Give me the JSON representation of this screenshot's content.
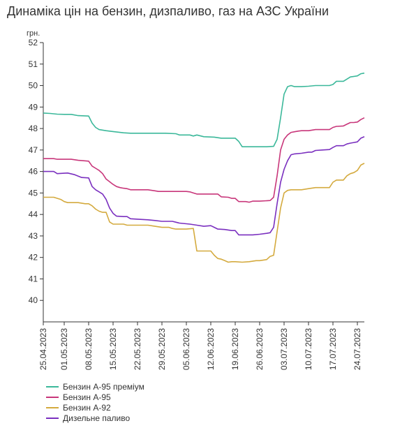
{
  "chart_data": {
    "type": "line",
    "title": "Динаміка цін на бензин, дизпаливо, газ на АЗС України",
    "y_unit": "грн.",
    "ylim": [
      39,
      52
    ],
    "y_ticks": [
      40,
      41,
      42,
      43,
      44,
      45,
      46,
      47,
      48,
      49,
      50,
      51,
      52
    ],
    "x_ticks": [
      "25.04.2023",
      "01.05.2023",
      "08.05.2023",
      "15.05.2023",
      "22.05.2023",
      "29.05.2023",
      "05.06.2023",
      "12.06.2023",
      "19.06.2023",
      "26.06.2023",
      "03.07.2023",
      "10.07.2023",
      "17.07.2023",
      "24.07.2023"
    ],
    "x_start": "2023-04-25",
    "x_end": "2023-07-26",
    "grid": false,
    "legend_position": "bottom-left",
    "series": [
      {
        "name": "Бензин А-95 преміум",
        "color": "#3bb89a",
        "points": [
          [
            "2023-04-25",
            48.72
          ],
          [
            "2023-04-27",
            48.7
          ],
          [
            "2023-04-29",
            48.67
          ],
          [
            "2023-05-01",
            48.66
          ],
          [
            "2023-05-03",
            48.66
          ],
          [
            "2023-05-05",
            48.6
          ],
          [
            "2023-05-08",
            48.58
          ],
          [
            "2023-05-09",
            48.25
          ],
          [
            "2023-05-10",
            48.05
          ],
          [
            "2023-05-11",
            47.95
          ],
          [
            "2023-05-13",
            47.9
          ],
          [
            "2023-05-15",
            47.86
          ],
          [
            "2023-05-18",
            47.8
          ],
          [
            "2023-05-20",
            47.78
          ],
          [
            "2023-05-25",
            47.78
          ],
          [
            "2023-05-30",
            47.78
          ],
          [
            "2023-06-02",
            47.76
          ],
          [
            "2023-06-03",
            47.7
          ],
          [
            "2023-06-06",
            47.7
          ],
          [
            "2023-06-07",
            47.65
          ],
          [
            "2023-06-08",
            47.7
          ],
          [
            "2023-06-10",
            47.62
          ],
          [
            "2023-06-13",
            47.6
          ],
          [
            "2023-06-15",
            47.55
          ],
          [
            "2023-06-19",
            47.55
          ],
          [
            "2023-06-20",
            47.4
          ],
          [
            "2023-06-21",
            47.15
          ],
          [
            "2023-06-23",
            47.15
          ],
          [
            "2023-06-26",
            47.15
          ],
          [
            "2023-06-28",
            47.15
          ],
          [
            "2023-06-30",
            47.17
          ],
          [
            "2023-07-01",
            47.5
          ],
          [
            "2023-07-02",
            48.5
          ],
          [
            "2023-07-03",
            49.6
          ],
          [
            "2023-07-04",
            49.95
          ],
          [
            "2023-07-05",
            50.0
          ],
          [
            "2023-07-06",
            49.95
          ],
          [
            "2023-07-08",
            49.95
          ],
          [
            "2023-07-10",
            49.97
          ],
          [
            "2023-07-12",
            50.0
          ],
          [
            "2023-07-14",
            50.0
          ],
          [
            "2023-07-16",
            50.0
          ],
          [
            "2023-07-17",
            50.05
          ],
          [
            "2023-07-18",
            50.2
          ],
          [
            "2023-07-19",
            50.2
          ],
          [
            "2023-07-20",
            50.2
          ],
          [
            "2023-07-21",
            50.3
          ],
          [
            "2023-07-22",
            50.4
          ],
          [
            "2023-07-24",
            50.45
          ],
          [
            "2023-07-25",
            50.55
          ],
          [
            "2023-07-26",
            50.58
          ]
        ]
      },
      {
        "name": "Бензин А-95",
        "color": "#c8367a",
        "points": [
          [
            "2023-04-25",
            46.6
          ],
          [
            "2023-04-28",
            46.6
          ],
          [
            "2023-04-29",
            46.57
          ],
          [
            "2023-05-03",
            46.57
          ],
          [
            "2023-05-05",
            46.52
          ],
          [
            "2023-05-08",
            46.48
          ],
          [
            "2023-05-09",
            46.25
          ],
          [
            "2023-05-10",
            46.15
          ],
          [
            "2023-05-11",
            46.05
          ],
          [
            "2023-05-12",
            45.9
          ],
          [
            "2023-05-13",
            45.65
          ],
          [
            "2023-05-15",
            45.4
          ],
          [
            "2023-05-16",
            45.3
          ],
          [
            "2023-05-17",
            45.25
          ],
          [
            "2023-05-18",
            45.22
          ],
          [
            "2023-05-19",
            45.2
          ],
          [
            "2023-05-20",
            45.15
          ],
          [
            "2023-05-25",
            45.15
          ],
          [
            "2023-05-27",
            45.1
          ],
          [
            "2023-05-28",
            45.07
          ],
          [
            "2023-06-05",
            45.07
          ],
          [
            "2023-06-06",
            45.05
          ],
          [
            "2023-06-07",
            45.0
          ],
          [
            "2023-06-08",
            44.95
          ],
          [
            "2023-06-14",
            44.95
          ],
          [
            "2023-06-15",
            44.82
          ],
          [
            "2023-06-17",
            44.8
          ],
          [
            "2023-06-18",
            44.75
          ],
          [
            "2023-06-19",
            44.75
          ],
          [
            "2023-06-20",
            44.6
          ],
          [
            "2023-06-22",
            44.6
          ],
          [
            "2023-06-23",
            44.57
          ],
          [
            "2023-06-24",
            44.62
          ],
          [
            "2023-06-26",
            44.62
          ],
          [
            "2023-06-29",
            44.65
          ],
          [
            "2023-06-30",
            44.8
          ],
          [
            "2023-07-01",
            45.8
          ],
          [
            "2023-07-02",
            47.0
          ],
          [
            "2023-07-03",
            47.5
          ],
          [
            "2023-07-04",
            47.7
          ],
          [
            "2023-07-05",
            47.82
          ],
          [
            "2023-07-06",
            47.85
          ],
          [
            "2023-07-07",
            47.88
          ],
          [
            "2023-07-08",
            47.9
          ],
          [
            "2023-07-10",
            47.9
          ],
          [
            "2023-07-12",
            47.95
          ],
          [
            "2023-07-14",
            47.95
          ],
          [
            "2023-07-16",
            47.95
          ],
          [
            "2023-07-17",
            48.05
          ],
          [
            "2023-07-18",
            48.1
          ],
          [
            "2023-07-20",
            48.12
          ],
          [
            "2023-07-21",
            48.2
          ],
          [
            "2023-07-22",
            48.28
          ],
          [
            "2023-07-23",
            48.28
          ],
          [
            "2023-07-24",
            48.3
          ],
          [
            "2023-07-25",
            48.42
          ],
          [
            "2023-07-26",
            48.5
          ]
        ]
      },
      {
        "name": "Бензин А-92",
        "color": "#d4aa3e",
        "points": [
          [
            "2023-04-25",
            44.8
          ],
          [
            "2023-04-28",
            44.8
          ],
          [
            "2023-04-30",
            44.7
          ],
          [
            "2023-05-01",
            44.6
          ],
          [
            "2023-05-02",
            44.55
          ],
          [
            "2023-05-05",
            44.55
          ],
          [
            "2023-05-07",
            44.5
          ],
          [
            "2023-05-08",
            44.5
          ],
          [
            "2023-05-09",
            44.4
          ],
          [
            "2023-05-10",
            44.25
          ],
          [
            "2023-05-11",
            44.15
          ],
          [
            "2023-05-12",
            44.1
          ],
          [
            "2023-05-13",
            44.1
          ],
          [
            "2023-05-14",
            43.65
          ],
          [
            "2023-05-15",
            43.55
          ],
          [
            "2023-05-18",
            43.55
          ],
          [
            "2023-05-19",
            43.5
          ],
          [
            "2023-05-22",
            43.5
          ],
          [
            "2023-05-25",
            43.5
          ],
          [
            "2023-05-27",
            43.45
          ],
          [
            "2023-05-29",
            43.4
          ],
          [
            "2023-05-31",
            43.4
          ],
          [
            "2023-06-01",
            43.35
          ],
          [
            "2023-06-02",
            43.32
          ],
          [
            "2023-06-05",
            43.32
          ],
          [
            "2023-06-07",
            43.35
          ],
          [
            "2023-06-08",
            42.3
          ],
          [
            "2023-06-10",
            42.3
          ],
          [
            "2023-06-12",
            42.3
          ],
          [
            "2023-06-13",
            42.1
          ],
          [
            "2023-06-14",
            41.95
          ],
          [
            "2023-06-15",
            41.92
          ],
          [
            "2023-06-16",
            41.85
          ],
          [
            "2023-06-17",
            41.78
          ],
          [
            "2023-06-18",
            41.8
          ],
          [
            "2023-06-19",
            41.8
          ],
          [
            "2023-06-21",
            41.78
          ],
          [
            "2023-06-23",
            41.8
          ],
          [
            "2023-06-25",
            41.85
          ],
          [
            "2023-06-26",
            41.85
          ],
          [
            "2023-06-28",
            41.9
          ],
          [
            "2023-06-29",
            42.05
          ],
          [
            "2023-06-30",
            42.1
          ],
          [
            "2023-07-01",
            43.2
          ],
          [
            "2023-07-02",
            44.3
          ],
          [
            "2023-07-03",
            45.0
          ],
          [
            "2023-07-04",
            45.12
          ],
          [
            "2023-07-05",
            45.15
          ],
          [
            "2023-07-08",
            45.15
          ],
          [
            "2023-07-10",
            45.2
          ],
          [
            "2023-07-12",
            45.25
          ],
          [
            "2023-07-14",
            45.25
          ],
          [
            "2023-07-16",
            45.25
          ],
          [
            "2023-07-17",
            45.5
          ],
          [
            "2023-07-18",
            45.6
          ],
          [
            "2023-07-20",
            45.6
          ],
          [
            "2023-07-21",
            45.8
          ],
          [
            "2023-07-22",
            45.9
          ],
          [
            "2023-07-23",
            45.95
          ],
          [
            "2023-07-24",
            46.05
          ],
          [
            "2023-07-25",
            46.3
          ],
          [
            "2023-07-26",
            46.38
          ]
        ]
      },
      {
        "name": "Дизельне паливо",
        "color": "#7a2fbf",
        "points": [
          [
            "2023-04-25",
            46.0
          ],
          [
            "2023-04-28",
            46.0
          ],
          [
            "2023-04-29",
            45.9
          ],
          [
            "2023-05-01",
            45.92
          ],
          [
            "2023-05-02",
            45.93
          ],
          [
            "2023-05-04",
            45.85
          ],
          [
            "2023-05-06",
            45.72
          ],
          [
            "2023-05-08",
            45.7
          ],
          [
            "2023-05-09",
            45.3
          ],
          [
            "2023-05-10",
            45.15
          ],
          [
            "2023-05-11",
            45.05
          ],
          [
            "2023-05-12",
            44.95
          ],
          [
            "2023-05-13",
            44.7
          ],
          [
            "2023-05-14",
            44.3
          ],
          [
            "2023-05-15",
            44.05
          ],
          [
            "2023-05-16",
            43.92
          ],
          [
            "2023-05-18",
            43.9
          ],
          [
            "2023-05-19",
            43.9
          ],
          [
            "2023-05-20",
            43.8
          ],
          [
            "2023-05-22",
            43.78
          ],
          [
            "2023-05-25",
            43.75
          ],
          [
            "2023-05-27",
            43.72
          ],
          [
            "2023-05-29",
            43.68
          ],
          [
            "2023-06-01",
            43.68
          ],
          [
            "2023-06-03",
            43.6
          ],
          [
            "2023-06-06",
            43.55
          ],
          [
            "2023-06-08",
            43.5
          ],
          [
            "2023-06-10",
            43.45
          ],
          [
            "2023-06-12",
            43.48
          ],
          [
            "2023-06-13",
            43.4
          ],
          [
            "2023-06-14",
            43.32
          ],
          [
            "2023-06-16",
            43.3
          ],
          [
            "2023-06-18",
            43.25
          ],
          [
            "2023-06-19",
            43.25
          ],
          [
            "2023-06-20",
            43.05
          ],
          [
            "2023-06-22",
            43.05
          ],
          [
            "2023-06-24",
            43.05
          ],
          [
            "2023-06-26",
            43.08
          ],
          [
            "2023-06-28",
            43.12
          ],
          [
            "2023-06-29",
            43.15
          ],
          [
            "2023-06-30",
            43.4
          ],
          [
            "2023-07-01",
            44.5
          ],
          [
            "2023-07-02",
            45.5
          ],
          [
            "2023-07-03",
            46.1
          ],
          [
            "2023-07-04",
            46.5
          ],
          [
            "2023-07-05",
            46.78
          ],
          [
            "2023-07-06",
            46.82
          ],
          [
            "2023-07-08",
            46.85
          ],
          [
            "2023-07-10",
            46.9
          ],
          [
            "2023-07-11",
            46.9
          ],
          [
            "2023-07-12",
            46.98
          ],
          [
            "2023-07-14",
            47.0
          ],
          [
            "2023-07-16",
            47.02
          ],
          [
            "2023-07-17",
            47.12
          ],
          [
            "2023-07-18",
            47.2
          ],
          [
            "2023-07-20",
            47.2
          ],
          [
            "2023-07-21",
            47.28
          ],
          [
            "2023-07-22",
            47.32
          ],
          [
            "2023-07-23",
            47.35
          ],
          [
            "2023-07-24",
            47.38
          ],
          [
            "2023-07-25",
            47.55
          ],
          [
            "2023-07-26",
            47.62
          ]
        ]
      }
    ]
  }
}
